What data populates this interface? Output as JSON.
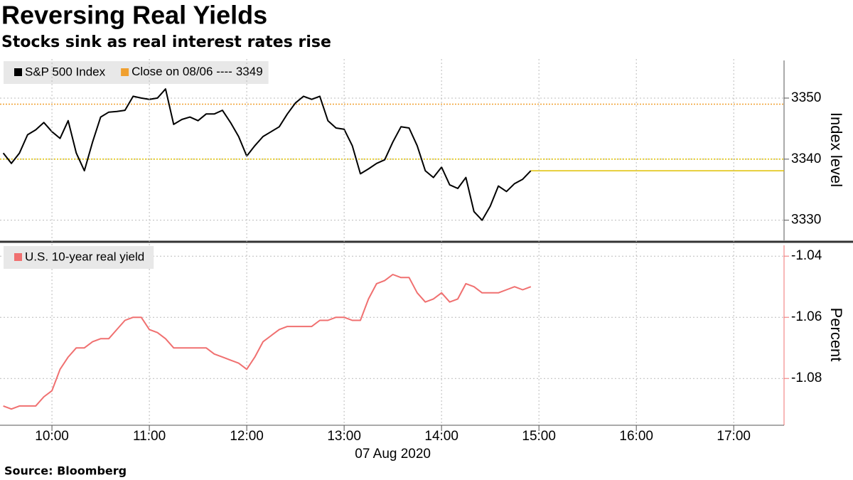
{
  "title": "Reversing Real Yields",
  "subtitle": "Stocks sink as real interest rates rise",
  "source": "Source: Bloomberg",
  "chart_data": [
    {
      "type": "line",
      "ylabel": "Index level",
      "x": [
        "09:30",
        "09:35",
        "09:40",
        "09:45",
        "09:50",
        "09:55",
        "10:00",
        "10:05",
        "10:10",
        "10:15",
        "10:20",
        "10:25",
        "10:30",
        "10:35",
        "10:40",
        "10:45",
        "10:50",
        "10:55",
        "11:00",
        "11:05",
        "11:10",
        "11:15",
        "11:20",
        "11:25",
        "11:30",
        "11:35",
        "11:40",
        "11:45",
        "11:50",
        "11:55",
        "12:00",
        "12:05",
        "12:10",
        "12:15",
        "12:20",
        "12:25",
        "12:30",
        "12:35",
        "12:40",
        "12:45",
        "12:50",
        "12:55",
        "13:00",
        "13:05",
        "13:10",
        "13:15",
        "13:20",
        "13:25",
        "13:30",
        "13:35",
        "13:40",
        "13:45",
        "13:50",
        "13:55",
        "14:00",
        "14:05",
        "14:10",
        "14:15",
        "14:20",
        "14:25",
        "14:30",
        "14:35",
        "14:40",
        "14:45",
        "14:50",
        "14:55"
      ],
      "xlim": [
        "09:28",
        "17:31"
      ],
      "series": [
        {
          "name": "S&P 500 Index",
          "color": "#000000",
          "values": [
            3341.0,
            3339.3,
            3341.0,
            3344.0,
            3344.8,
            3346.0,
            3344.5,
            3343.4,
            3346.3,
            3341.0,
            3338.1,
            3342.8,
            3346.9,
            3347.7,
            3347.8,
            3348.0,
            3350.3,
            3350.0,
            3349.8,
            3350.0,
            3351.5,
            3345.7,
            3346.5,
            3346.9,
            3346.3,
            3347.4,
            3347.4,
            3348.0,
            3346.0,
            3343.7,
            3340.5,
            3342.2,
            3343.7,
            3344.5,
            3345.3,
            3347.4,
            3349.2,
            3350.3,
            3349.8,
            3350.3,
            3346.3,
            3345.1,
            3344.9,
            3342.2,
            3337.6,
            3338.4,
            3339.3,
            3339.9,
            3342.8,
            3345.3,
            3345.1,
            3342.2,
            3338.1,
            3337.0,
            3338.7,
            3335.8,
            3335.2,
            3337.0,
            3331.4,
            3330.0,
            3332.3,
            3335.6,
            3334.7,
            3336.0,
            3336.7,
            3338.1
          ]
        }
      ],
      "reference_lines": [
        {
          "label": "Close on 08/06 ----",
          "value": 3349,
          "color": "#f0a030"
        },
        {
          "value": 3340,
          "color": "#e0c000"
        }
      ],
      "last_value_line": {
        "color": "#e0c000"
      },
      "ylim": [
        3326.7,
        3356.4
      ],
      "yticks": [
        3330,
        3340,
        3350
      ],
      "axis_color": "#555555",
      "grid": true
    },
    {
      "type": "line",
      "ylabel": "Percent",
      "xlabel": "07 Aug 2020",
      "x": [
        "09:30",
        "09:35",
        "09:40",
        "09:45",
        "09:50",
        "09:55",
        "10:00",
        "10:05",
        "10:10",
        "10:15",
        "10:20",
        "10:25",
        "10:30",
        "10:35",
        "10:40",
        "10:45",
        "10:50",
        "10:55",
        "11:00",
        "11:05",
        "11:10",
        "11:15",
        "11:20",
        "11:25",
        "11:30",
        "11:35",
        "11:40",
        "11:45",
        "11:50",
        "11:55",
        "12:00",
        "12:05",
        "12:10",
        "12:15",
        "12:20",
        "12:25",
        "12:30",
        "12:35",
        "12:40",
        "12:45",
        "12:50",
        "12:55",
        "13:00",
        "13:05",
        "13:10",
        "13:15",
        "13:20",
        "13:25",
        "13:30",
        "13:35",
        "13:40",
        "13:45",
        "13:50",
        "13:55",
        "14:00",
        "14:05",
        "14:10",
        "14:15",
        "14:20",
        "14:25",
        "14:30",
        "14:35",
        "14:40",
        "14:45",
        "14:50",
        "14:55"
      ],
      "xlim": [
        "09:28",
        "17:31"
      ],
      "xticks": [
        "10:00",
        "11:00",
        "12:00",
        "13:00",
        "14:00",
        "15:00",
        "16:00",
        "17:00"
      ],
      "series": [
        {
          "name": "U.S. 10-year real yield",
          "color": "#f07070",
          "values": [
            -1.089,
            -1.09,
            -1.089,
            -1.089,
            -1.089,
            -1.086,
            -1.084,
            -1.077,
            -1.073,
            -1.07,
            -1.07,
            -1.068,
            -1.067,
            -1.067,
            -1.064,
            -1.061,
            -1.06,
            -1.06,
            -1.064,
            -1.065,
            -1.067,
            -1.07,
            -1.07,
            -1.07,
            -1.07,
            -1.07,
            -1.072,
            -1.073,
            -1.074,
            -1.075,
            -1.077,
            -1.073,
            -1.068,
            -1.066,
            -1.064,
            -1.063,
            -1.063,
            -1.063,
            -1.063,
            -1.061,
            -1.061,
            -1.06,
            -1.06,
            -1.061,
            -1.061,
            -1.054,
            -1.049,
            -1.048,
            -1.046,
            -1.047,
            -1.047,
            -1.052,
            -1.055,
            -1.054,
            -1.052,
            -1.055,
            -1.054,
            -1.049,
            -1.05,
            -1.052,
            -1.052,
            -1.052,
            -1.051,
            -1.05,
            -1.051,
            -1.05
          ]
        }
      ],
      "ylim": [
        -1.0953,
        -1.036
      ],
      "yticks": [
        -1.04,
        -1.06,
        -1.08
      ],
      "axis_color": "#f07070",
      "grid": true
    }
  ]
}
